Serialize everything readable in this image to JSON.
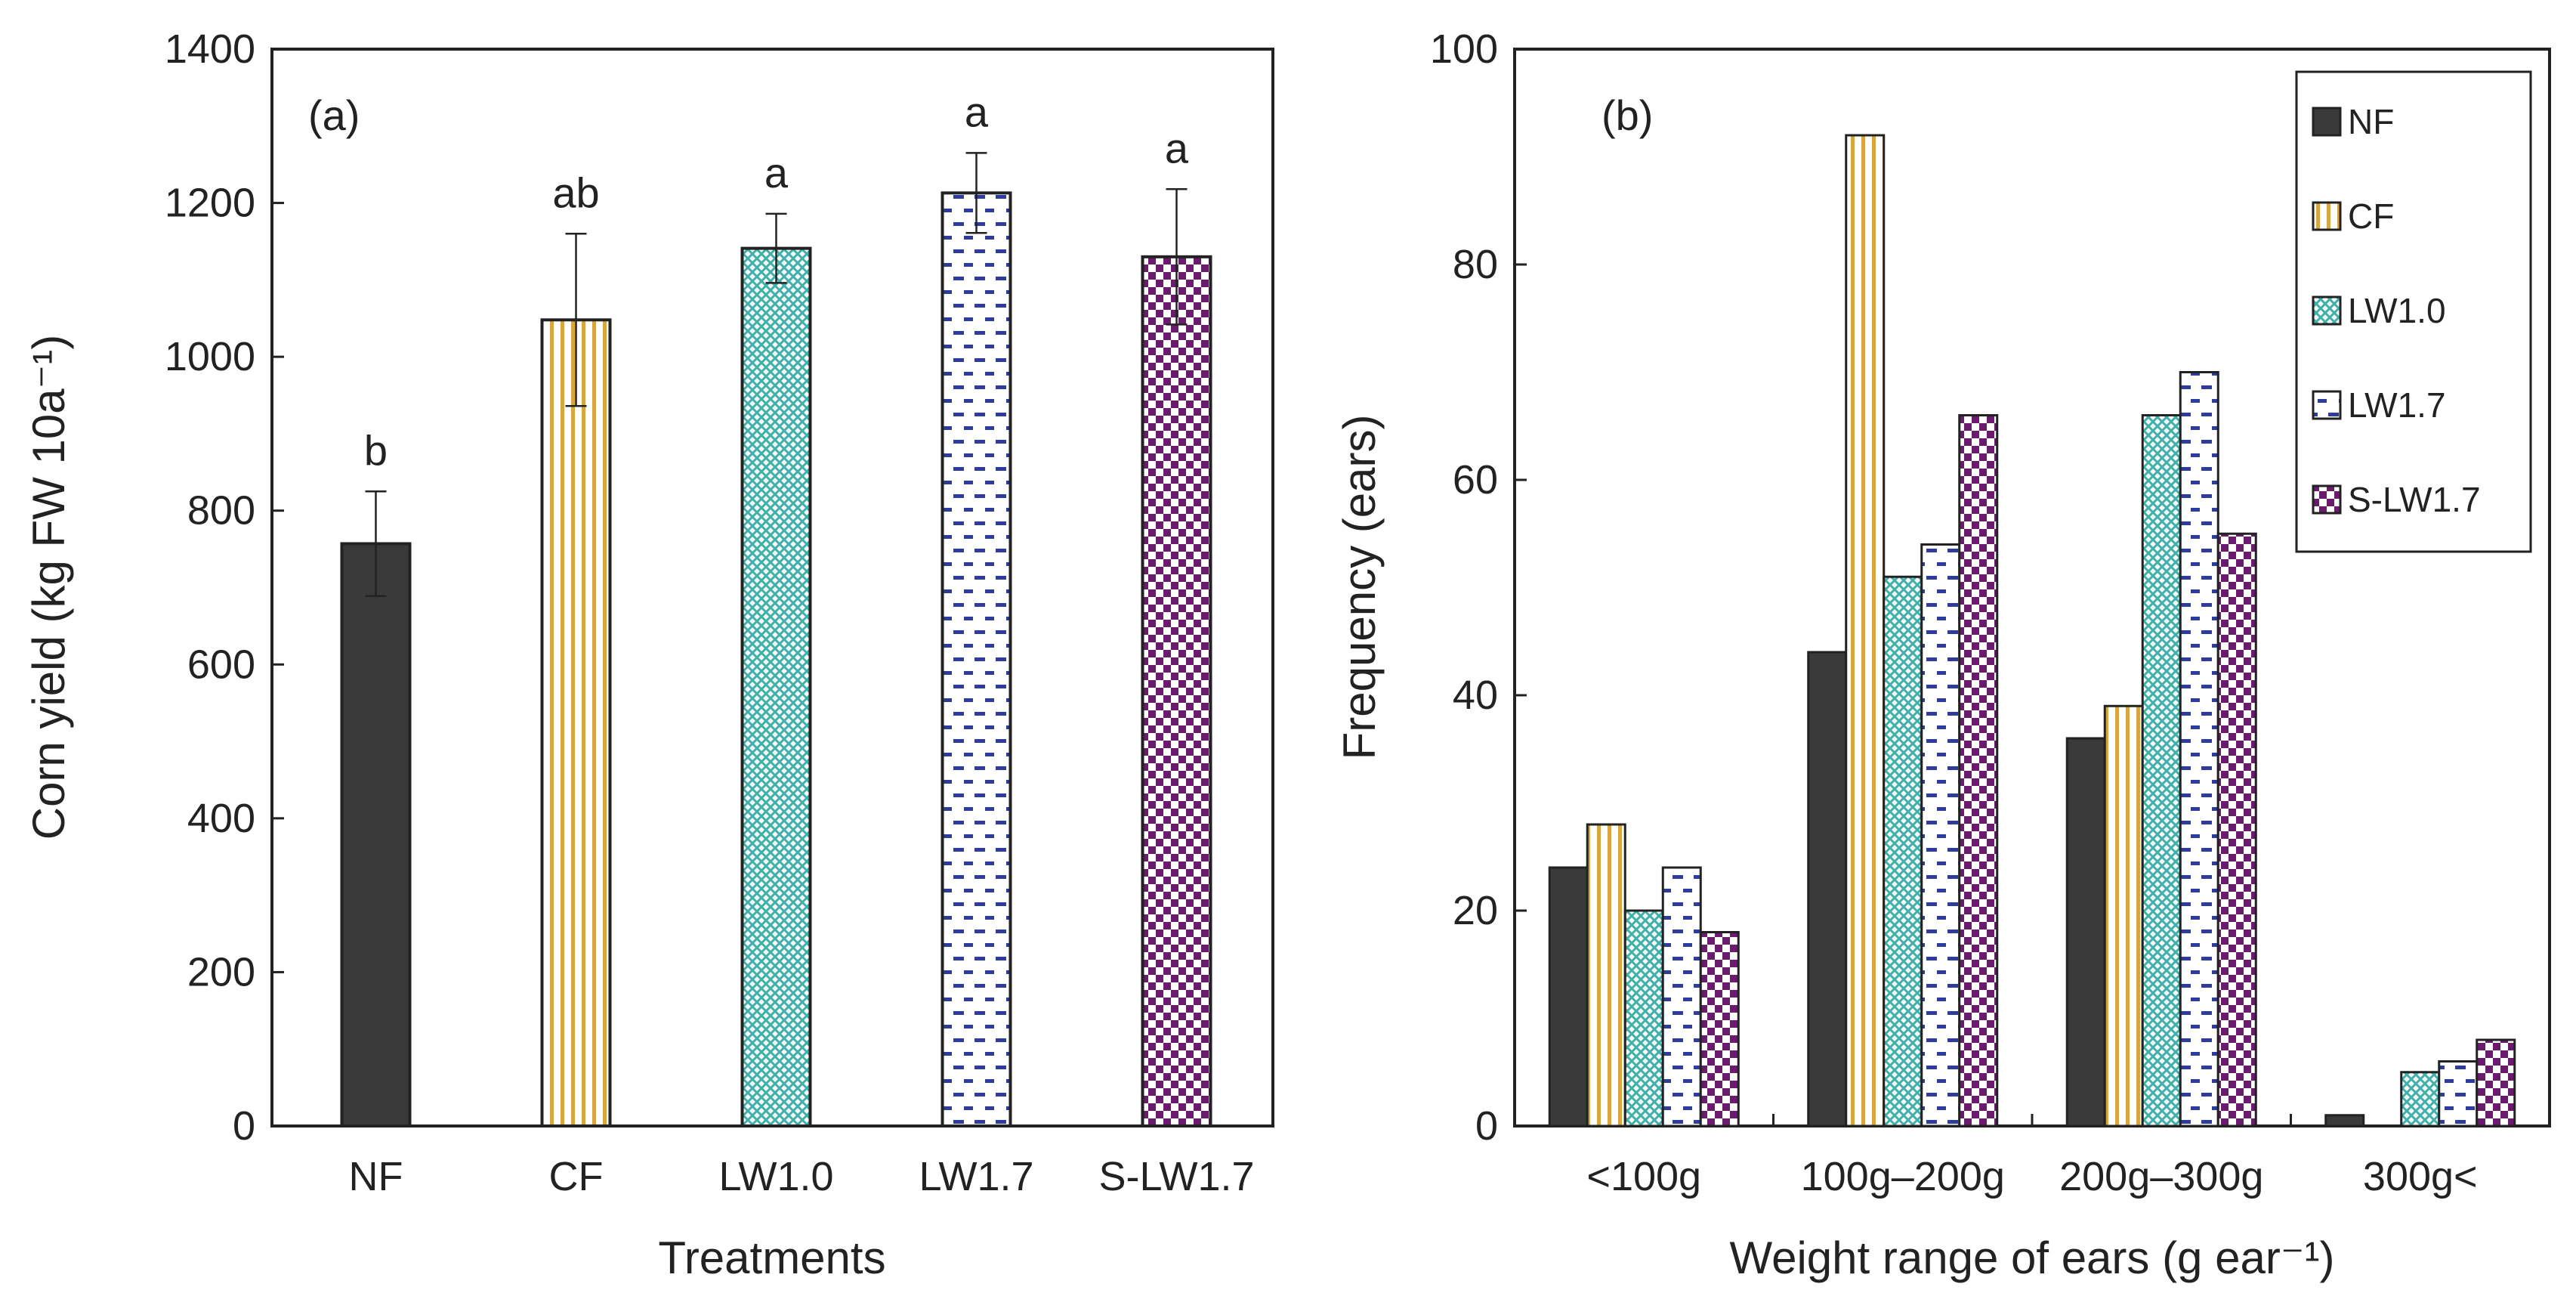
{
  "chart_data": [
    {
      "type": "bar",
      "panel_label": "(a)",
      "title": "",
      "xlabel": "Treatments",
      "ylabel": "Corn yield (kg FW 10a⁻¹)",
      "ylim": [
        0,
        1400
      ],
      "yticks": [
        "0",
        "200",
        "400",
        "600",
        "800",
        "1000",
        "1200",
        "1400"
      ],
      "categories": [
        "NF",
        "CF",
        "LW1.0",
        "LW1.7",
        "S-LW1.7"
      ],
      "values": [
        757,
        1048,
        1141,
        1213,
        1130
      ],
      "error": [
        68,
        112,
        45,
        52,
        88
      ],
      "significance": [
        "b",
        "ab",
        "a",
        "a",
        "a"
      ],
      "grid": false
    },
    {
      "type": "bar",
      "panel_label": "(b)",
      "title": "",
      "xlabel": "Weight range of ears (g ear⁻¹)",
      "ylabel": "Frequency (ears)",
      "ylim": [
        0,
        100
      ],
      "yticks": [
        "0",
        "20",
        "40",
        "60",
        "80",
        "100"
      ],
      "categories": [
        "<100g",
        "100g–200g",
        "200g–300g",
        "300g<"
      ],
      "series": [
        {
          "name": "NF",
          "values": [
            24,
            44,
            36,
            1
          ]
        },
        {
          "name": "CF",
          "values": [
            28,
            92,
            39,
            0
          ]
        },
        {
          "name": "LW1.0",
          "values": [
            20,
            51,
            66,
            5
          ]
        },
        {
          "name": "LW1.7",
          "values": [
            24,
            54,
            70,
            6
          ]
        },
        {
          "name": "S-LW1.7",
          "values": [
            18,
            66,
            55,
            8
          ]
        }
      ],
      "legend_position": "top-right",
      "grid": false
    }
  ]
}
